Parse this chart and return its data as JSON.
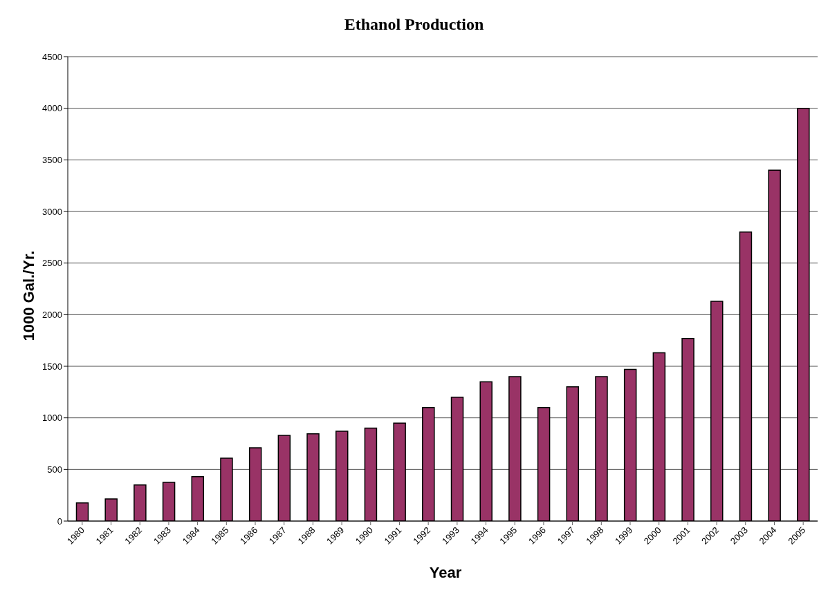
{
  "chart_data": {
    "type": "bar",
    "title": "Ethanol Production",
    "xlabel": "Year",
    "ylabel": "1000 Gal./Yr.",
    "categories": [
      "1980",
      "1981",
      "1982",
      "1983",
      "1984",
      "1985",
      "1986",
      "1987",
      "1988",
      "1989",
      "1990",
      "1991",
      "1992",
      "1993",
      "1994",
      "1995",
      "1996",
      "1997",
      "1998",
      "1999",
      "2000",
      "2001",
      "2002",
      "2003",
      "2004",
      "2005"
    ],
    "values": [
      175,
      215,
      350,
      375,
      430,
      610,
      710,
      830,
      845,
      870,
      900,
      950,
      1100,
      1200,
      1350,
      1400,
      1100,
      1300,
      1400,
      1470,
      1630,
      1770,
      2130,
      2800,
      3400,
      4000
    ],
    "color": "#993366",
    "ylim": [
      0,
      4500
    ],
    "yticks": [
      0,
      500,
      1000,
      1500,
      2000,
      2500,
      3000,
      3500,
      4000,
      4500
    ],
    "grid": "y"
  }
}
